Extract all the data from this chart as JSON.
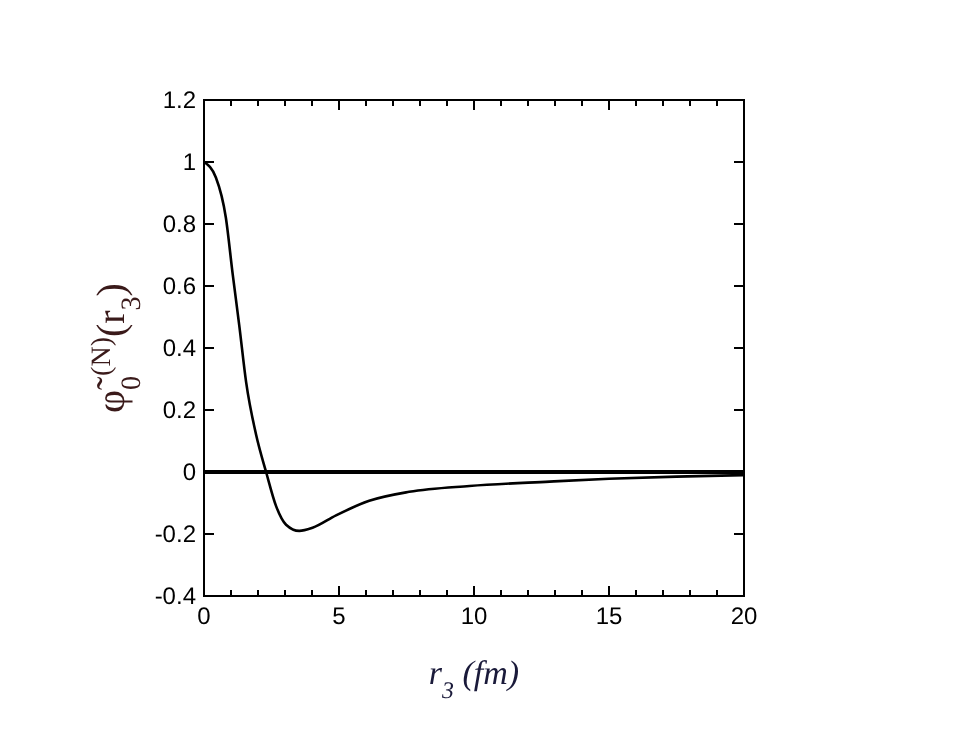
{
  "chart_data": {
    "type": "line",
    "xlabel": "r$_{3}$  (fm)",
    "ylabel": "φ̃$_{0}$$^{(N)}$(r$_{3}$)",
    "x": [
      0,
      0.44,
      0.81,
      1.06,
      1.31,
      1.56,
      1.93,
      2.3,
      2.67,
      3.04,
      3.53,
      4.02,
      4.89,
      6.12,
      7.6,
      9.83,
      12.8,
      15,
      17.5,
      20
    ],
    "series": [
      {
        "color": "#000000",
        "values": [
          1,
          0.95,
          0.82,
          0.64,
          0.47,
          0.29,
          0.12,
          0,
          -0.11,
          -0.17,
          -0.19,
          -0.18,
          -0.14,
          -0.093,
          -0.064,
          -0.045,
          -0.031,
          -0.022,
          -0.015,
          -0.01
        ]
      }
    ],
    "xlim": [
      0,
      20
    ],
    "ylim": [
      -0.4,
      1.2
    ],
    "xticks": [
      0,
      {
        "value": 1,
        "label": null
      },
      {
        "value": 2,
        "label": null
      },
      {
        "value": 3,
        "label": null
      },
      {
        "value": 4,
        "label": null
      },
      5,
      {
        "value": 6,
        "label": null
      },
      {
        "value": 7,
        "label": null
      },
      {
        "value": 8,
        "label": null
      },
      {
        "value": 9,
        "label": null
      },
      10,
      {
        "value": 11,
        "label": null
      },
      {
        "value": 12,
        "label": null
      },
      {
        "value": 13,
        "label": null
      },
      {
        "value": 14,
        "label": null
      },
      15,
      {
        "value": 16,
        "label": null
      },
      {
        "value": 17,
        "label": null
      },
      {
        "value": 18,
        "label": null
      },
      {
        "value": 19,
        "label": null
      },
      20
    ],
    "yticks": [
      -0.4,
      -0.2,
      0,
      0.2,
      0.4,
      0.6,
      0.8,
      1,
      1.2
    ],
    "ref_lines": [
      {
        "axis": "y",
        "value": 0,
        "color": "#000000"
      }
    ],
    "grid": false,
    "marker": "none",
    "line_style": "solid"
  }
}
